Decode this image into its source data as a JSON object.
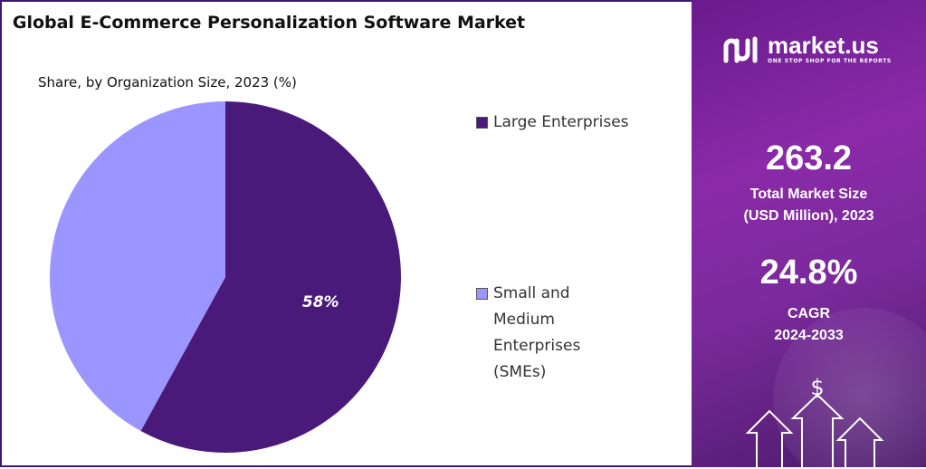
{
  "chart_data": {
    "type": "pie",
    "title": "Global E-Commerce Personalization Software Market",
    "subtitle": "Share, by Organization Size, 2023 (%)",
    "categories": [
      "Large Enterprises",
      "Small and Medium Enterprises (SMEs)"
    ],
    "values": [
      58,
      42
    ],
    "labels": [
      "58%",
      ""
    ],
    "colors": [
      "#4a1a7a",
      "#9b95ff"
    ],
    "legend": [
      "Large Enterprises",
      "Small and\nMedium\nEnterprises\n(SMEs)"
    ],
    "legend_position": "right"
  },
  "brand": {
    "name": "market.us",
    "tagline": "ONE STOP SHOP FOR THE REPORTS"
  },
  "stats": {
    "market_size_value": "263.2",
    "market_size_label_1": "Total Market Size",
    "market_size_label_2": "(USD Million), 2023",
    "cagr_value": "24.8%",
    "cagr_label_1": "CAGR",
    "cagr_label_2": "2024-2033"
  },
  "decor": {
    "dollar_sign": "$"
  }
}
